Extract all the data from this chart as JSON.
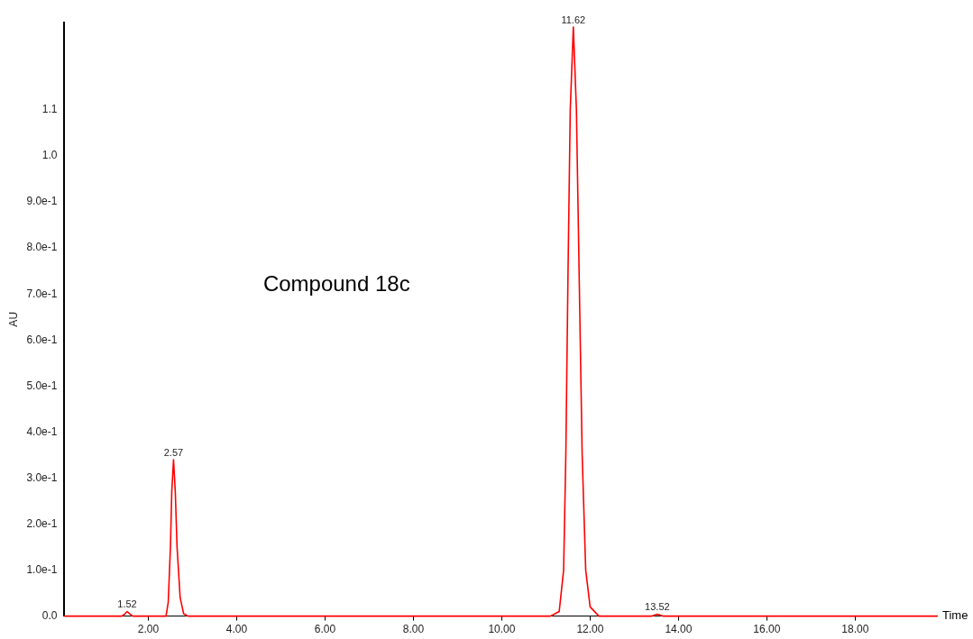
{
  "chart_data": {
    "type": "line",
    "title": "Compound 18c",
    "xlabel": "Time",
    "ylabel": "AU",
    "x": [
      0.1,
      1.4,
      1.47,
      1.52,
      1.58,
      1.65,
      2.4,
      2.45,
      2.5,
      2.53,
      2.57,
      2.61,
      2.65,
      2.72,
      2.8,
      2.9,
      11.1,
      11.3,
      11.4,
      11.45,
      11.5,
      11.55,
      11.62,
      11.69,
      11.75,
      11.82,
      11.9,
      12.0,
      12.2,
      13.4,
      13.52,
      13.65,
      19.85
    ],
    "series": [
      {
        "color": "#ff0000",
        "values": [
          0,
          0,
          0.005,
          0.01,
          0.005,
          0,
          0,
          0.03,
          0.15,
          0.27,
          0.34,
          0.27,
          0.15,
          0.04,
          0.005,
          0,
          0,
          0.01,
          0.1,
          0.35,
          0.75,
          1.1,
          1.28,
          1.1,
          0.75,
          0.35,
          0.1,
          0.02,
          0,
          0,
          0.004,
          0,
          0
        ]
      }
    ],
    "xlim": [
      0.1,
      19.85
    ],
    "xticks": [
      {
        "value": 2,
        "label": "2.00"
      },
      {
        "value": 4,
        "label": "4.00"
      },
      {
        "value": 6,
        "label": "6.00"
      },
      {
        "value": 8,
        "label": "8.00"
      },
      {
        "value": 10,
        "label": "10.00"
      },
      {
        "value": 12,
        "label": "12.00"
      },
      {
        "value": 14,
        "label": "14.00"
      },
      {
        "value": 16,
        "label": "16.00"
      },
      {
        "value": 18,
        "label": "18.00"
      }
    ],
    "ylim": [
      0,
      1.29
    ],
    "yticks": [
      {
        "value": 0,
        "label": "0.0"
      },
      {
        "value": 0.1,
        "label": "1.0e-1"
      },
      {
        "value": 0.2,
        "label": "2.0e-1"
      },
      {
        "value": 0.3,
        "label": "3.0e-1"
      },
      {
        "value": 0.4,
        "label": "4.0e-1"
      },
      {
        "value": 0.5,
        "label": "5.0e-1"
      },
      {
        "value": 0.6,
        "label": "6.0e-1"
      },
      {
        "value": 0.7,
        "label": "7.0e-1"
      },
      {
        "value": 0.8,
        "label": "8.0e-1"
      },
      {
        "value": 0.9,
        "label": "9.0e-1"
      },
      {
        "value": 1.0,
        "label": "1.0"
      },
      {
        "value": 1.1,
        "label": "1.1"
      }
    ],
    "annotations": [
      {
        "text": "1.52",
        "x": 1.52,
        "y": 0.01
      },
      {
        "text": "2.57",
        "x": 2.57,
        "y": 0.34
      },
      {
        "text": "11.62",
        "x": 11.62,
        "y": 1.28
      },
      {
        "text": "13.52",
        "x": 13.52,
        "y": 0.004
      }
    ],
    "grid": false,
    "legend": false,
    "marker": "none",
    "line_style": "solid"
  }
}
